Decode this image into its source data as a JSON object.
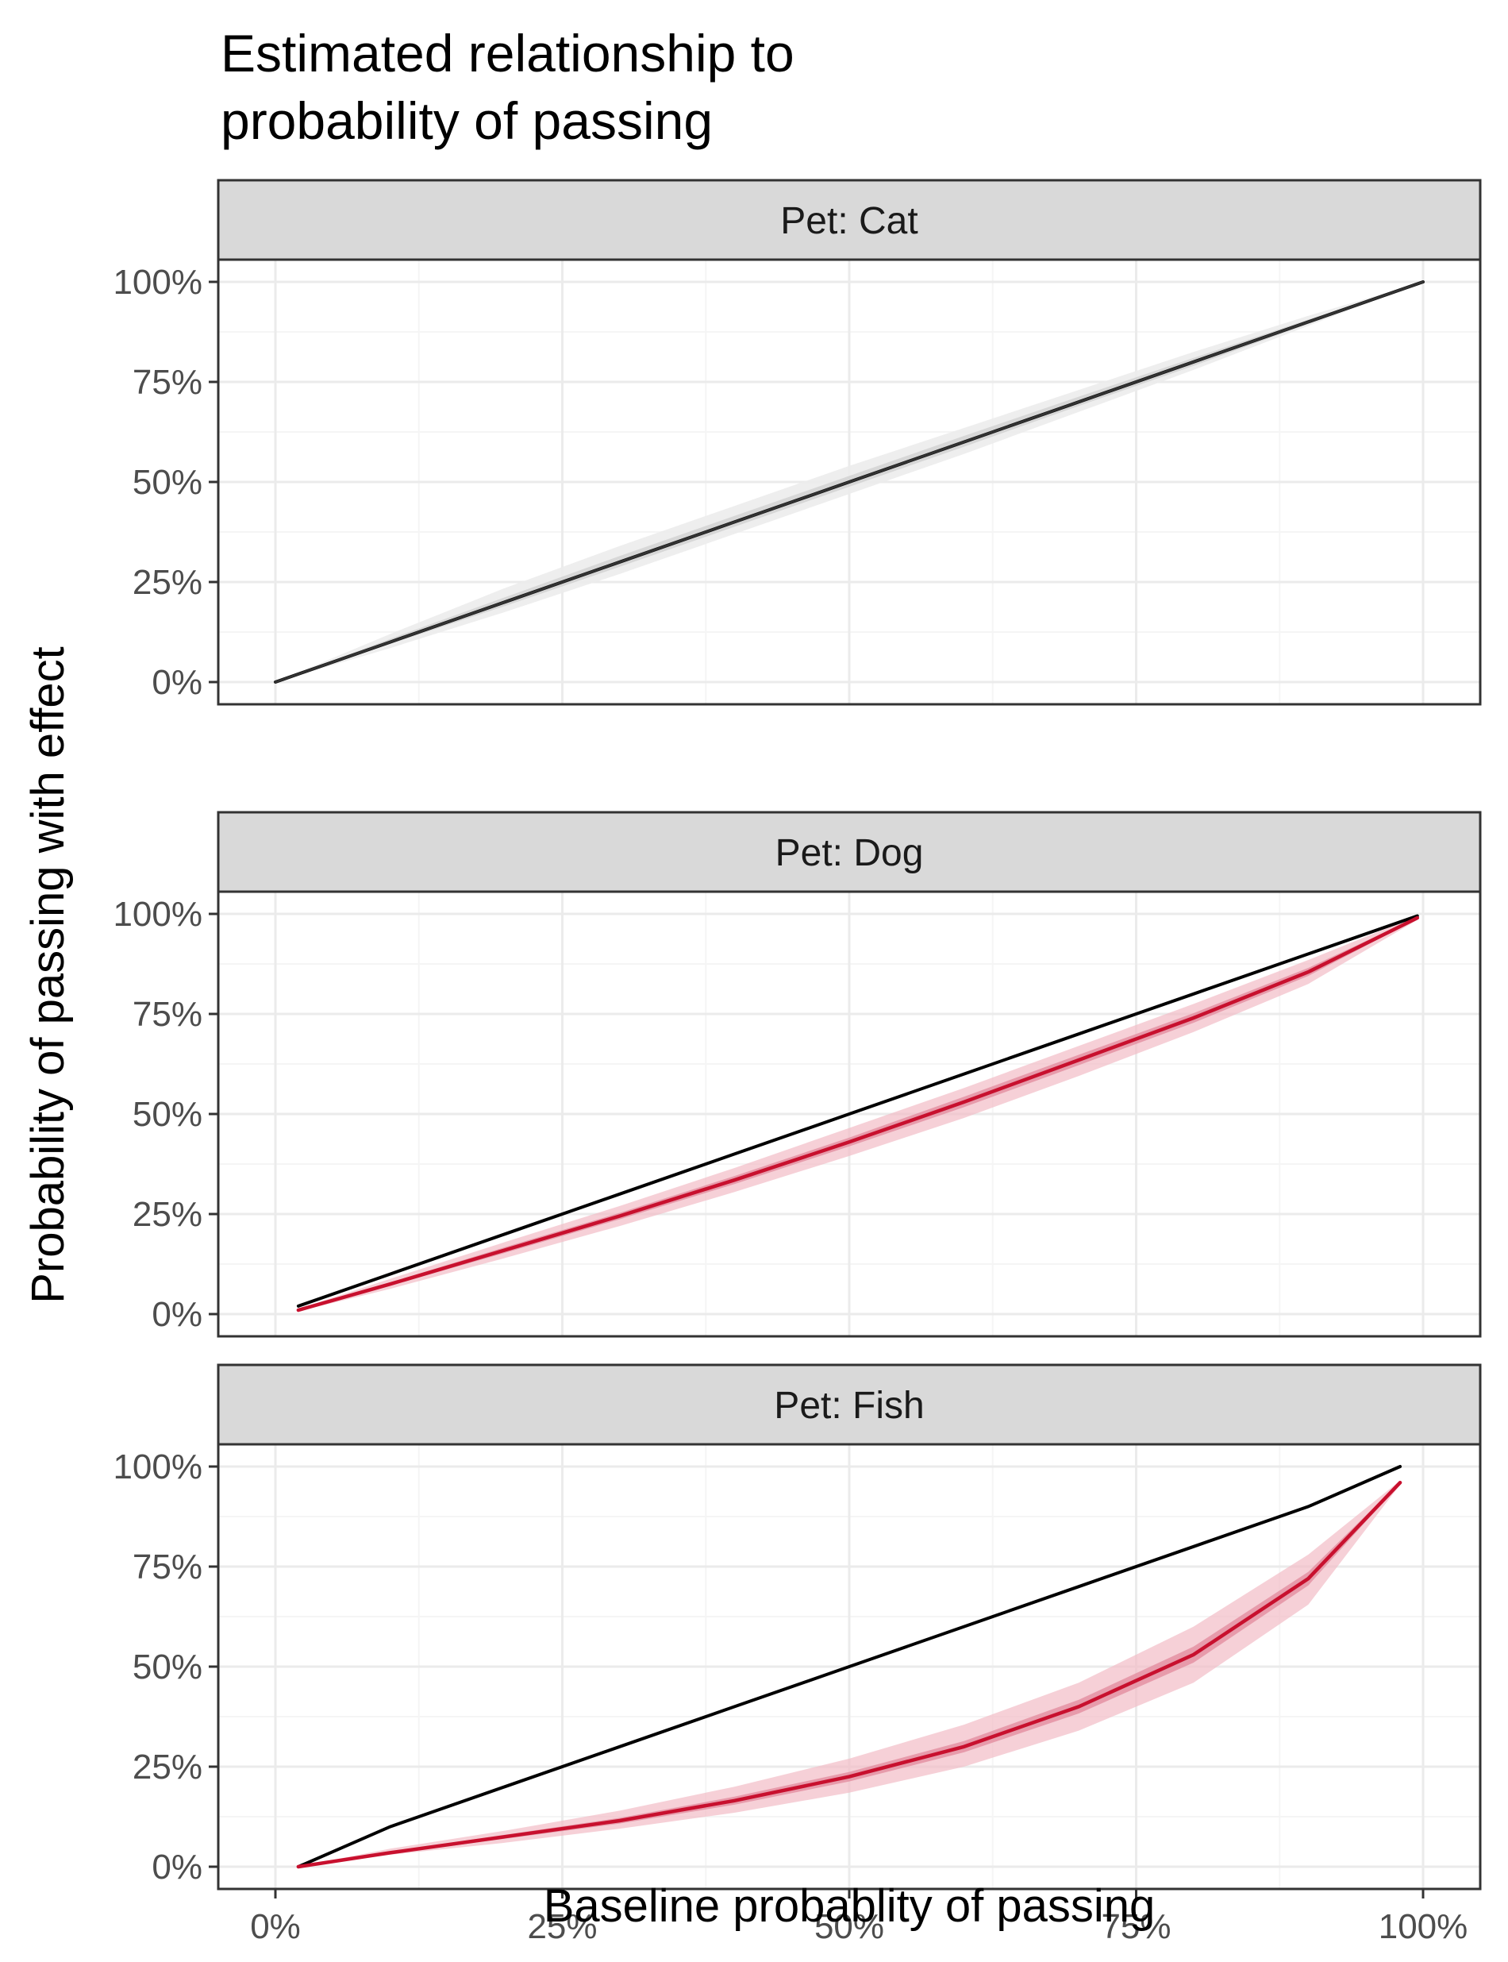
{
  "chart_data": {
    "type": "line",
    "title": "Estimated relationship to\nprobability of passing",
    "xlabel": "Baseline probablity of passing",
    "ylabel": "Probability of passing with effect",
    "xlim": [
      0,
      1
    ],
    "ylim": [
      0,
      1
    ],
    "x_ticks": [
      "0%",
      "25%",
      "50%",
      "75%",
      "100%"
    ],
    "y_ticks": [
      "0%",
      "25%",
      "50%",
      "75%",
      "100%"
    ],
    "grid": true,
    "legend": "none",
    "colors": {
      "reference_line": "#000000",
      "effect_line": "#c8102e",
      "effect_band_outer": "#f2bcc6",
      "effect_band_inner": "#e28a9c",
      "null_band_outer": "#ececec",
      "null_band_inner": "#d4d4d4",
      "strip_fill": "#d9d9d9",
      "grid_major": "#ebebeb",
      "grid_minor": "#f5f5f5"
    },
    "panels": [
      {
        "strip": "Pet: Cat",
        "effect_style": "null",
        "x": [
          0,
          0.1,
          0.2,
          0.3,
          0.4,
          0.5,
          0.6,
          0.7,
          0.8,
          0.9,
          1.0
        ],
        "reference": [
          0,
          0.1,
          0.2,
          0.3,
          0.4,
          0.5,
          0.6,
          0.7,
          0.8,
          0.9,
          1.0
        ],
        "estimate": [
          0,
          0.1,
          0.2,
          0.3,
          0.4,
          0.5,
          0.6,
          0.7,
          0.8,
          0.9,
          1.0
        ],
        "outer_lower": [
          0,
          0.085,
          0.175,
          0.27,
          0.37,
          0.47,
          0.57,
          0.675,
          0.78,
          0.89,
          1.0
        ],
        "outer_upper": [
          0,
          0.12,
          0.235,
          0.34,
          0.44,
          0.54,
          0.635,
          0.73,
          0.825,
          0.915,
          1.0
        ],
        "inner_lower": [
          0,
          0.095,
          0.19,
          0.288,
          0.388,
          0.488,
          0.588,
          0.69,
          0.79,
          0.895,
          1.0
        ],
        "inner_upper": [
          0,
          0.108,
          0.212,
          0.315,
          0.415,
          0.515,
          0.615,
          0.713,
          0.81,
          0.906,
          1.0
        ]
      },
      {
        "strip": "Pet: Dog",
        "effect_style": "effect",
        "x": [
          0.02,
          0.1,
          0.2,
          0.3,
          0.4,
          0.5,
          0.6,
          0.7,
          0.8,
          0.9,
          0.995
        ],
        "reference": [
          0.02,
          0.1,
          0.2,
          0.3,
          0.4,
          0.5,
          0.6,
          0.7,
          0.8,
          0.9,
          0.995
        ],
        "estimate": [
          0.01,
          0.075,
          0.16,
          0.245,
          0.335,
          0.43,
          0.53,
          0.635,
          0.74,
          0.855,
          0.99
        ],
        "outer_lower": [
          0.007,
          0.063,
          0.14,
          0.22,
          0.305,
          0.395,
          0.49,
          0.595,
          0.705,
          0.825,
          0.985
        ],
        "outer_upper": [
          0.013,
          0.088,
          0.18,
          0.27,
          0.365,
          0.465,
          0.565,
          0.67,
          0.775,
          0.885,
          0.995
        ],
        "inner_lower": [
          0.009,
          0.071,
          0.153,
          0.237,
          0.325,
          0.419,
          0.517,
          0.622,
          0.728,
          0.845,
          0.988
        ],
        "inner_upper": [
          0.011,
          0.079,
          0.167,
          0.253,
          0.345,
          0.441,
          0.543,
          0.648,
          0.752,
          0.865,
          0.992
        ]
      },
      {
        "strip": "Pet: Fish",
        "effect_style": "effect",
        "x": [
          0.02,
          0.1,
          0.2,
          0.3,
          0.4,
          0.5,
          0.6,
          0.7,
          0.8,
          0.9,
          0.98
        ],
        "reference": [
          0.0,
          0.1,
          0.2,
          0.3,
          0.4,
          0.5,
          0.6,
          0.7,
          0.8,
          0.9,
          1.0
        ],
        "estimate": [
          0.0,
          0.035,
          0.075,
          0.115,
          0.165,
          0.225,
          0.3,
          0.4,
          0.53,
          0.72,
          0.96
        ],
        "outer_lower": [
          0.0,
          0.03,
          0.06,
          0.095,
          0.135,
          0.185,
          0.25,
          0.34,
          0.46,
          0.655,
          0.955
        ],
        "outer_upper": [
          0.0,
          0.045,
          0.09,
          0.14,
          0.2,
          0.27,
          0.355,
          0.46,
          0.6,
          0.78,
          0.965
        ],
        "inner_lower": [
          0.0,
          0.032,
          0.07,
          0.108,
          0.155,
          0.213,
          0.286,
          0.383,
          0.51,
          0.703,
          0.958
        ],
        "inner_upper": [
          0.0,
          0.038,
          0.08,
          0.122,
          0.175,
          0.237,
          0.314,
          0.417,
          0.55,
          0.737,
          0.962
        ]
      }
    ]
  }
}
